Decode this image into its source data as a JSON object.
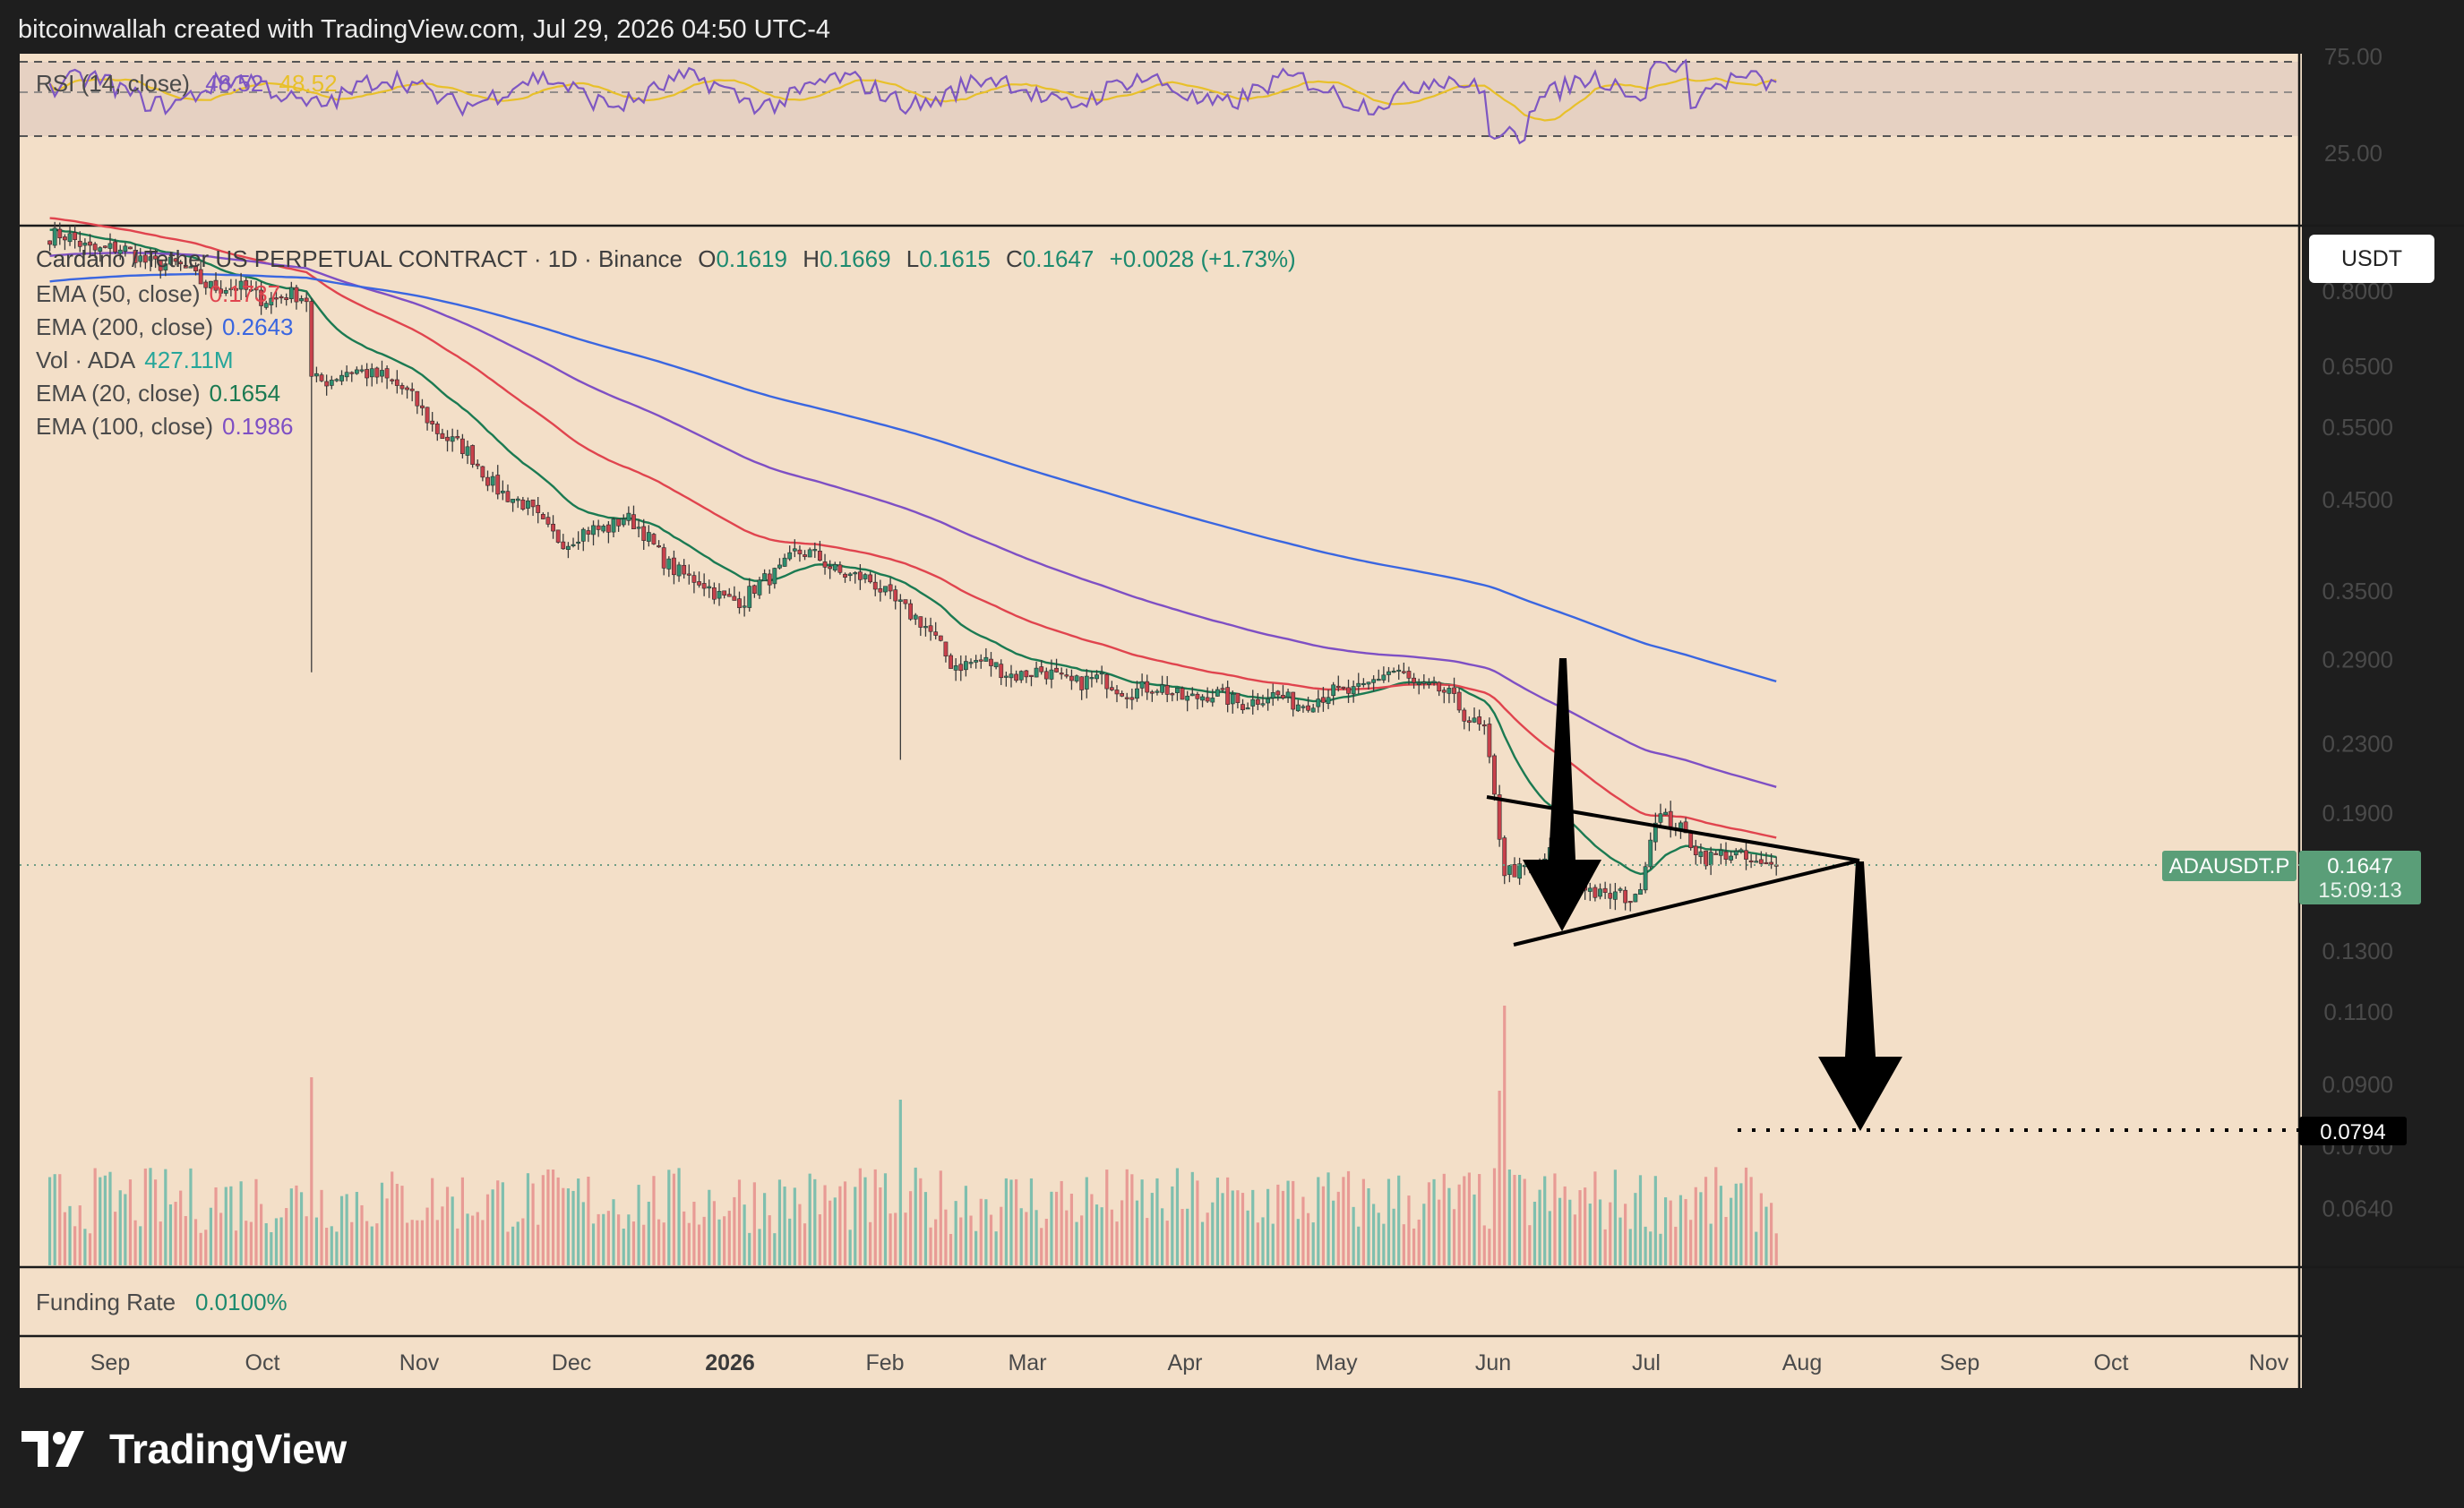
{
  "header": {
    "text": "bitcoinwallah created with TradingView.com, Jul 29, 2026 04:50 UTC-4"
  },
  "brand": {
    "name": "TradingView"
  },
  "currency_button": {
    "label": "USDT"
  },
  "legend": {
    "title": "Cardano / Tether US PERPETUAL CONTRACT · 1D · Binance",
    "ohlc": {
      "o_label": "O",
      "o": "0.1619",
      "h_label": "H",
      "h": "0.1669",
      "l_label": "L",
      "l": "0.1615",
      "c_label": "C",
      "c": "0.1647",
      "chg": "+0.0028 (+1.73%)"
    },
    "items": [
      {
        "label": "EMA (50, close)",
        "value": "0.1737",
        "color": "#e0444e"
      },
      {
        "label": "EMA (200, close)",
        "value": "0.2643",
        "color": "#3a66e0"
      },
      {
        "label": "Vol · ADA",
        "value": "427.11M",
        "color": "#26a69a"
      },
      {
        "label": "EMA (20, close)",
        "value": "0.1654",
        "color": "#1b7a52"
      },
      {
        "label": "EMA (100, close)",
        "value": "0.1986",
        "color": "#7e4fc4"
      }
    ]
  },
  "rsi": {
    "label": "RSI (14, close)",
    "value": "48.52",
    "ma_value": "48.52",
    "ticks": [
      "75.00",
      "25.00"
    ],
    "color": "#7e57c2",
    "ma_color": "#e8c02a"
  },
  "funding": {
    "label": "Funding Rate",
    "value": "0.0100%",
    "color": "#1d8a6f"
  },
  "badges": {
    "symbol": "ADAUSDT.P",
    "price": "0.1647",
    "countdown": "15:09:13",
    "target": "0.0794"
  },
  "chart_data": {
    "type": "candlestick",
    "title": "Cardano / Tether US PERPETUAL CONTRACT · 1D · Binance",
    "x_axis": {
      "labels": [
        "Sep",
        "Oct",
        "Nov",
        "Dec",
        "2026",
        "Feb",
        "Mar",
        "Apr",
        "May",
        "Jun",
        "Jul",
        "Aug",
        "Sep",
        "Oct",
        "Nov"
      ]
    },
    "y_axis": {
      "scale": "log",
      "ticks": [
        "0.8000",
        "0.6500",
        "0.5500",
        "0.4500",
        "0.3500",
        "0.2900",
        "0.2300",
        "0.1900",
        "0.1300",
        "0.1100",
        "0.0900",
        "0.0760",
        "0.0640"
      ]
    },
    "series": [
      {
        "name": "ADAUSDT.P",
        "key_points": [
          {
            "x": "Aug 20",
            "y": 0.93
          },
          {
            "x": "Sep 10",
            "y": 0.87
          },
          {
            "x": "Sep 25",
            "y": 0.8
          },
          {
            "x": "Oct 10",
            "y": 0.78
          },
          {
            "x": "Oct 11",
            "y": 0.63
          },
          {
            "x": "Oct 25",
            "y": 0.64
          },
          {
            "x": "Nov 5",
            "y": 0.55
          },
          {
            "x": "Nov 20",
            "y": 0.45
          },
          {
            "x": "Dec 1",
            "y": 0.4
          },
          {
            "x": "Dec 12",
            "y": 0.43
          },
          {
            "x": "Dec 25",
            "y": 0.36
          },
          {
            "x": "Jan 5",
            "y": 0.34
          },
          {
            "x": "Jan 15",
            "y": 0.39
          },
          {
            "x": "Jan 25",
            "y": 0.37
          },
          {
            "x": "Feb 5",
            "y": 0.34
          },
          {
            "x": "Feb 15",
            "y": 0.29
          },
          {
            "x": "Mar 1",
            "y": 0.28
          },
          {
            "x": "Mar 20",
            "y": 0.27
          },
          {
            "x": "Apr 10",
            "y": 0.26
          },
          {
            "x": "Apr 30",
            "y": 0.26
          },
          {
            "x": "May 15",
            "y": 0.28
          },
          {
            "x": "May 25",
            "y": 0.26
          },
          {
            "x": "Jun 1",
            "y": 0.24
          },
          {
            "x": "Jun 5",
            "y": 0.16
          },
          {
            "x": "Jun 15",
            "y": 0.17
          },
          {
            "x": "Jun 25",
            "y": 0.15
          },
          {
            "x": "Jul 1",
            "y": 0.15
          },
          {
            "x": "Jul 5",
            "y": 0.19
          },
          {
            "x": "Jul 15",
            "y": 0.17
          },
          {
            "x": "Jul 29",
            "y": 0.1647
          }
        ]
      },
      {
        "name": "EMA (20, close)",
        "value": 0.1654,
        "color": "#1b7a52"
      },
      {
        "name": "EMA (50, close)",
        "value": 0.1737,
        "color": "#e0444e"
      },
      {
        "name": "EMA (100, close)",
        "value": 0.1986,
        "color": "#7e4fc4"
      },
      {
        "name": "EMA (200, close)",
        "value": 0.2643,
        "color": "#3a66e0"
      }
    ],
    "last_price": 0.1647,
    "target_price": 0.0794,
    "price_line": "dotted",
    "grid": false
  }
}
